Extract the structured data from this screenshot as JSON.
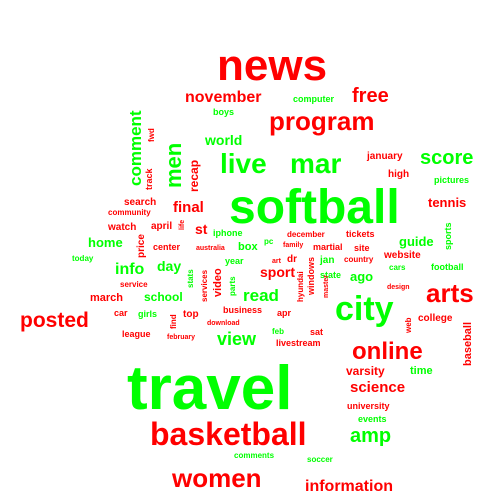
{
  "colors": {
    "red": "#ff0000",
    "green": "#00ff00"
  },
  "words": {
    "news": "news",
    "november": "november",
    "computer": "computer",
    "free": "free",
    "boys": "boys",
    "program": "program",
    "comment": "comment",
    "fwd": "fwd",
    "men": "men",
    "track": "track",
    "recap": "recap",
    "world": "world",
    "live": "live",
    "mar": "mar",
    "january": "january",
    "score": "score",
    "high": "high",
    "pictures": "pictures",
    "softball": "softball",
    "search": "search",
    "community": "community",
    "final": "final",
    "tennis": "tennis",
    "watch": "watch",
    "april": "april",
    "life": "life",
    "st": "st",
    "iphone": "iphone",
    "december": "december",
    "tickets": "tickets",
    "home": "home",
    "price": "price",
    "center": "center",
    "australia": "australia",
    "box": "box",
    "pc": "pc",
    "family": "family",
    "martial": "martial",
    "site": "site",
    "guide": "guide",
    "sports": "sports",
    "today": "today",
    "day": "day",
    "year": "year",
    "art": "art",
    "dr": "dr",
    "jan": "jan",
    "country": "country",
    "website": "website",
    "cars": "cars",
    "football": "football",
    "info": "info",
    "stats": "stats",
    "sport": "sport",
    "state": "state",
    "ago": "ago",
    "service": "service",
    "video": "video",
    "windows": "windows",
    "design": "design",
    "arts": "arts",
    "march": "march",
    "school": "school",
    "services": "services",
    "parts": "parts",
    "read": "read",
    "hyundai": "hyundai",
    "master": "master",
    "posted": "posted",
    "car": "car",
    "girls": "girls",
    "find": "find",
    "top": "top",
    "business": "business",
    "apr": "apr",
    "city": "city",
    "web": "web",
    "college": "college",
    "download": "download",
    "league": "league",
    "february": "february",
    "view": "view",
    "feb": "feb",
    "sat": "sat",
    "livestream": "livestream",
    "online": "online",
    "baseball": "baseball",
    "varsity": "varsity",
    "time": "time",
    "travel": "travel",
    "science": "science",
    "university": "university",
    "events": "events",
    "basketball": "basketball",
    "amp": "amp",
    "comments": "comments",
    "soccer": "soccer",
    "women": "women",
    "information": "information"
  }
}
